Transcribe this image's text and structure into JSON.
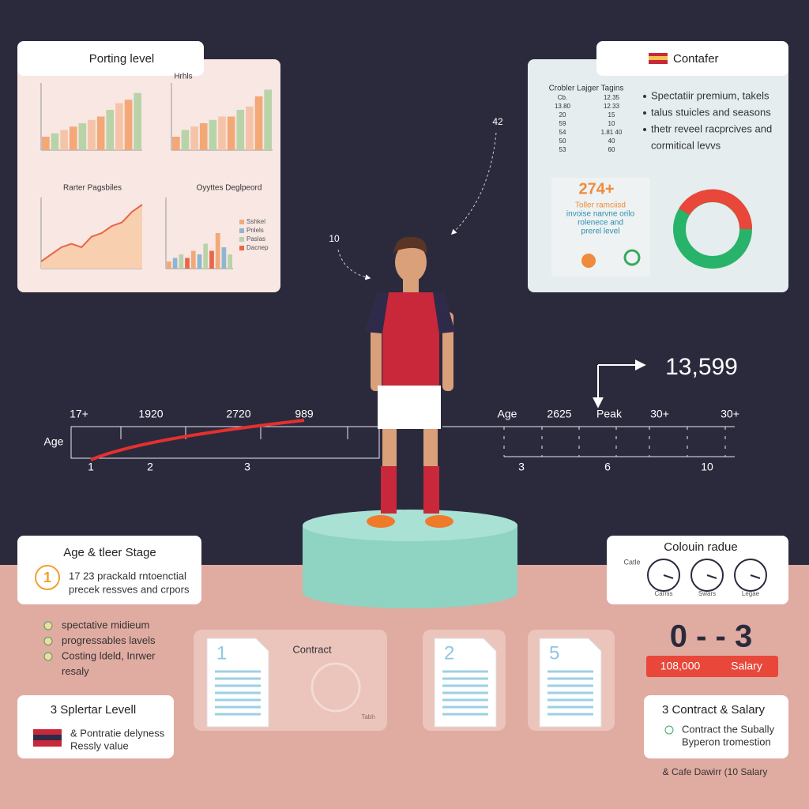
{
  "porting_panel": {
    "title": "Porting level",
    "charts": [
      {
        "type": "bar",
        "values": [
          2,
          2.5,
          3,
          3.5,
          4,
          4.5,
          5,
          6,
          7,
          7.5,
          8.5
        ],
        "ylim": [
          0,
          10
        ],
        "colors": [
          "#f3a878",
          "#b9d3a8",
          "#f5c4a8"
        ]
      },
      {
        "type": "bar",
        "title": "Hrhls",
        "values": [
          2,
          3,
          3.5,
          4,
          4.5,
          5,
          5,
          6,
          6.5,
          8,
          9
        ],
        "ylim": [
          0,
          10
        ],
        "colors": [
          "#f3a878",
          "#b9d3a8",
          "#f5c4a8"
        ]
      },
      {
        "type": "area",
        "title": "Rarter Pagsbiles",
        "values": [
          1,
          2,
          3,
          3.5,
          3,
          4.5,
          5,
          6,
          6.5,
          8,
          9
        ],
        "ylim": [
          0,
          10
        ],
        "colors": [
          "#f8d0b0",
          "#e8664a"
        ]
      },
      {
        "type": "bar",
        "title": "Oyyttes Deglpeord",
        "values": [
          1,
          1.5,
          2,
          1.5,
          2.5,
          2,
          3.5,
          2.5,
          5,
          3,
          2
        ],
        "ylim": [
          0,
          10
        ],
        "colors": [
          "#f3a878",
          "#8fb6d0",
          "#b9d3a8",
          "#e8664a"
        ],
        "legend": [
          "Sshkel",
          "Pnlels",
          "Paslas",
          "Dacnep"
        ]
      }
    ]
  },
  "contafer_panel": {
    "title": "Contafer",
    "table_title": "Crobler Lajger Tagins",
    "table_rows": [
      [
        "Cb.",
        "12.35"
      ],
      [
        "13.80",
        "12.33"
      ],
      [
        "20",
        "15"
      ],
      [
        "59",
        "10"
      ],
      [
        "54",
        "1.81 40"
      ],
      [
        "50",
        "40"
      ],
      [
        "53",
        "60"
      ]
    ],
    "bullets": [
      "Spectatiir premium, takels",
      "talus stuicles and seasons",
      "thetr reveel racprcives and",
      "cormitical levvs"
    ],
    "highlight": "274+",
    "highlight_text": [
      "Toller ramciisd",
      "invoise narvne orilo",
      "rolenece and",
      "prerel level"
    ]
  },
  "annotations": [
    "42",
    "10"
  ],
  "left_timeline": {
    "top_labels": [
      "17+",
      "1920",
      "2720",
      "989"
    ],
    "axis_label": "Age",
    "bottom_labels": [
      "1",
      "2",
      "3"
    ]
  },
  "right_timeline": {
    "top_labels": [
      "Age",
      "2625",
      "Peak",
      "30+",
      "30+"
    ],
    "bottom_labels": [
      "3",
      "6",
      "10"
    ],
    "callout": "13,599"
  },
  "age_card": {
    "title": "Age & tleer Stage",
    "icon": "1",
    "lines": [
      "17 23 prackald rntoenctial",
      "precek ressves and crpors"
    ]
  },
  "checklist": [
    "spectative midieum",
    "progressables lavels",
    "Costing ldeld, Inrwer",
    "resaly"
  ],
  "level_card": {
    "title": "3 Splertar Levell",
    "lines": [
      "& Pontratie delyness",
      "Ressly value"
    ]
  },
  "documents": {
    "label": "Contract",
    "numbers": [
      "1",
      "2",
      "5"
    ],
    "stamp": "Tabh"
  },
  "colour_card": {
    "title": "Colouin radue",
    "side_label": "Catle",
    "clocks": [
      "Carnis",
      "Swars",
      "Legae"
    ]
  },
  "score": {
    "value": "0 - - 3",
    "amount": "108,000",
    "label": "Salary"
  },
  "contract_card": {
    "title": "3 Contract & Salary",
    "lines": [
      "Contract the Subally",
      "Byperon tromestion"
    ]
  },
  "footer": "& Cafe Dawirr (10 Salary"
}
